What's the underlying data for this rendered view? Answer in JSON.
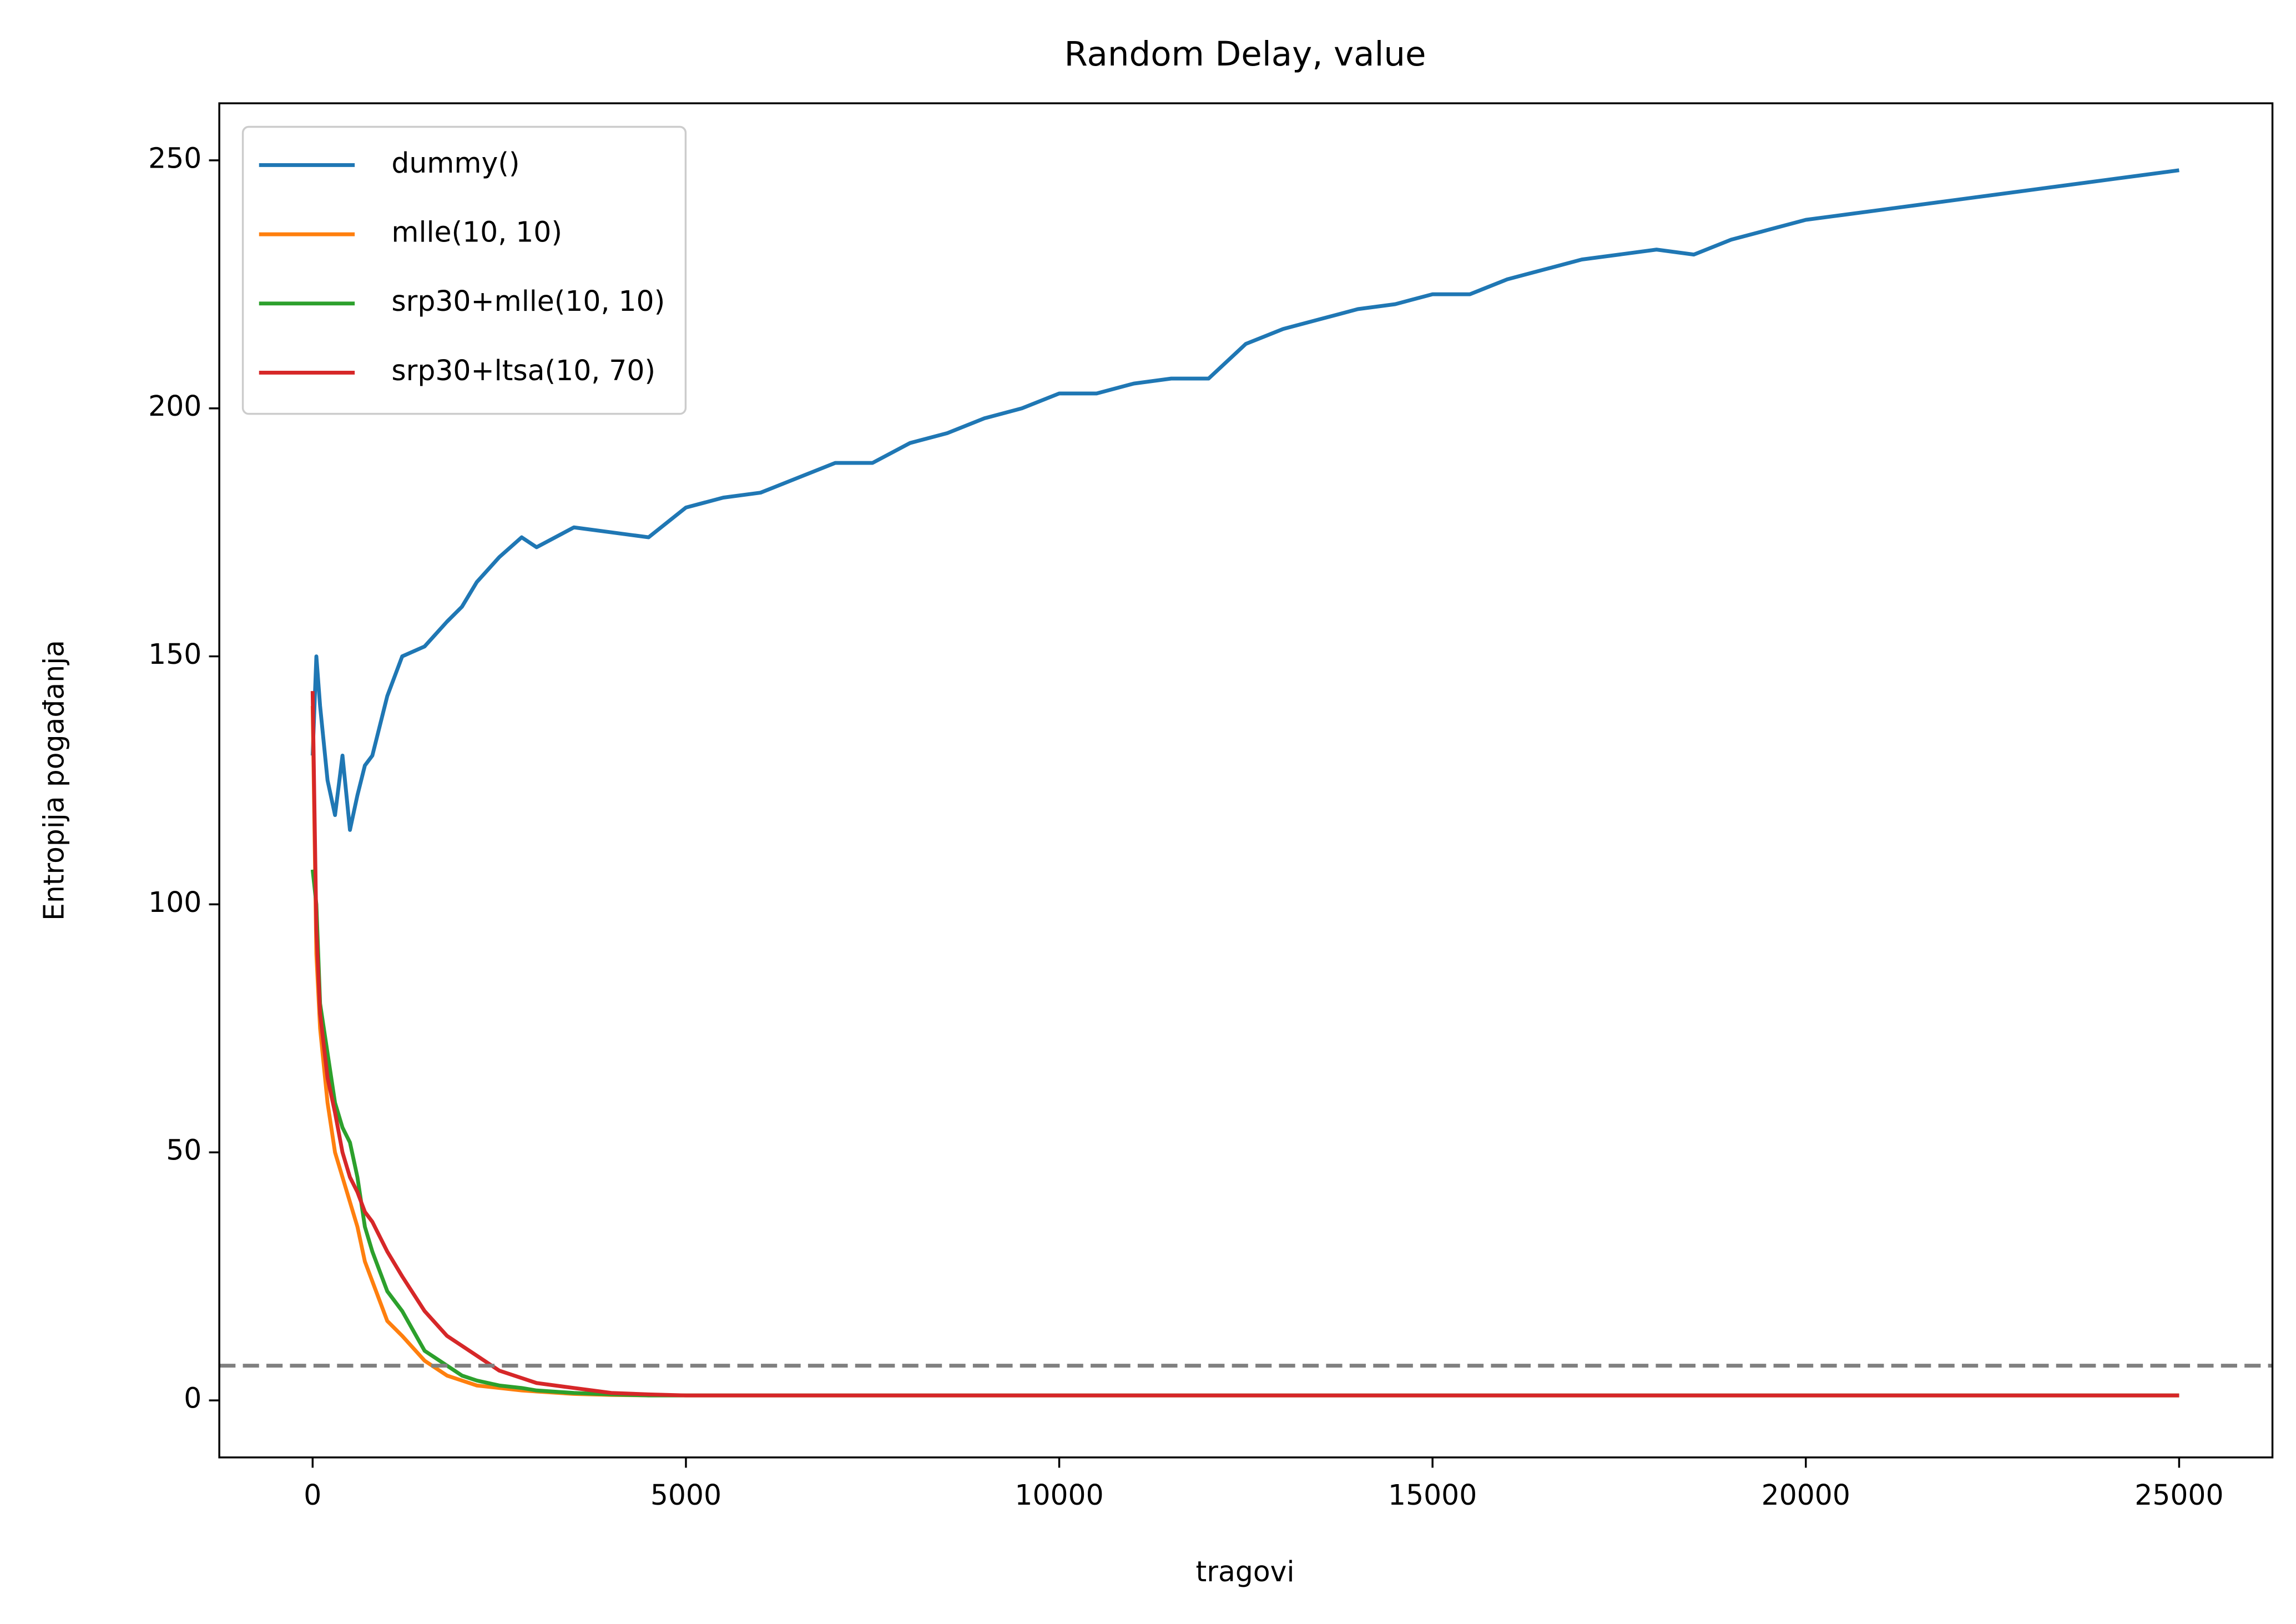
{
  "chart_data": {
    "type": "line",
    "title": "Random Delay, value",
    "x_label": "tragovi",
    "y_label": "Entropija pogađanja",
    "x": [
      0,
      50,
      100,
      200,
      300,
      400,
      500,
      600,
      700,
      800,
      1000,
      1200,
      1500,
      1800,
      2000,
      2200,
      2500,
      2800,
      3000,
      3500,
      4000,
      4500,
      5000,
      5500,
      6000,
      6500,
      7000,
      7500,
      8000,
      8500,
      9000,
      9500,
      10000,
      10500,
      11000,
      11500,
      12000,
      12500,
      13000,
      13500,
      14000,
      14500,
      15000,
      15500,
      16000,
      16500,
      17000,
      17500,
      18000,
      18500,
      19000,
      19500,
      20000,
      20500,
      21000,
      21500,
      22000,
      22500,
      23000,
      23500,
      24000,
      24500,
      25000
    ],
    "series": [
      {
        "name": "dummy()",
        "color": "#1f77b4",
        "values": [
          130,
          150,
          140,
          125,
          118,
          130,
          115,
          122,
          128,
          130,
          142,
          150,
          152,
          157,
          160,
          165,
          170,
          174,
          172,
          176,
          175,
          174,
          180,
          182,
          183,
          186,
          189,
          189,
          193,
          195,
          198,
          200,
          203,
          203,
          205,
          206,
          206,
          213,
          216,
          218,
          220,
          221,
          223,
          223,
          226,
          228,
          230,
          231,
          232,
          231,
          234,
          236,
          238,
          239,
          240,
          241,
          242,
          243,
          244,
          245,
          246,
          247,
          248
        ]
      },
      {
        "name": "mlle(10, 10)",
        "color": "#ff7f0e",
        "values": [
          140,
          90,
          75,
          60,
          50,
          45,
          40,
          35,
          28,
          24,
          16,
          13,
          8,
          5,
          4,
          3,
          2.5,
          2,
          1.8,
          1.3,
          1.1,
          1,
          1,
          1,
          1,
          1,
          1,
          1,
          1,
          1,
          1,
          1,
          1,
          1,
          1,
          1,
          1,
          1,
          1,
          1,
          1,
          1,
          1,
          1,
          1,
          1,
          1,
          1,
          1,
          1,
          1,
          1,
          1,
          1,
          1,
          1,
          1,
          1,
          1,
          1,
          1,
          1,
          1
        ]
      },
      {
        "name": "srp30+mlle(10, 10)",
        "color": "#2ca02c",
        "values": [
          107,
          100,
          80,
          70,
          60,
          55,
          52,
          45,
          35,
          30,
          22,
          18,
          10,
          7,
          5,
          4,
          3,
          2.5,
          2,
          1.5,
          1.2,
          1,
          1,
          1,
          1,
          1,
          1,
          1,
          1,
          1,
          1,
          1,
          1,
          1,
          1,
          1,
          1,
          1,
          1,
          1,
          1,
          1,
          1,
          1,
          1,
          1,
          1,
          1,
          1,
          1,
          1,
          1,
          1,
          1,
          1,
          1,
          1,
          1,
          1,
          1,
          1,
          1,
          1
        ]
      },
      {
        "name": "srp30+ltsa(10, 70)",
        "color": "#d62728",
        "values": [
          143,
          95,
          78,
          65,
          58,
          50,
          45,
          42,
          38,
          36,
          30,
          25,
          18,
          13,
          11,
          9,
          6,
          4.5,
          3.5,
          2.5,
          1.5,
          1.2,
          1,
          1,
          1,
          1,
          1,
          1,
          1,
          1,
          1,
          1,
          1,
          1,
          1,
          1,
          1,
          1,
          1,
          1,
          1,
          1,
          1,
          1,
          1,
          1,
          1,
          1,
          1,
          1,
          1,
          1,
          1,
          1,
          1,
          1,
          1,
          1,
          1,
          1,
          1,
          1,
          1
        ]
      }
    ],
    "hlines": [
      {
        "value": 7,
        "color": "#808080",
        "style": "dashed"
      }
    ],
    "xlim": [
      -1250,
      26250
    ],
    "xticks": [
      0,
      5000,
      10000,
      15000,
      20000,
      25000
    ],
    "ylim": [
      -11.5,
      261.5
    ],
    "yticks": [
      0,
      50,
      100,
      150,
      200,
      250
    ],
    "grid": false,
    "legend": "upper-left"
  }
}
